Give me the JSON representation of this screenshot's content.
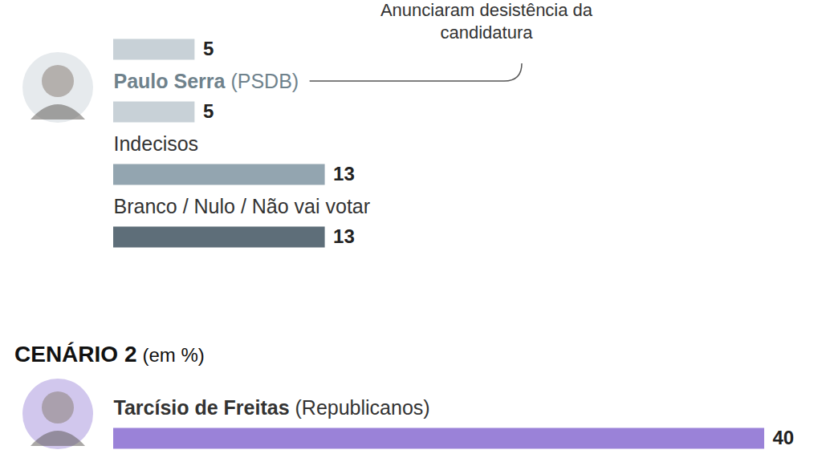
{
  "chart_data": [
    {
      "type": "bar",
      "orientation": "horizontal",
      "categories": [
        null,
        "Paulo Serra (PSDB)",
        "Indecisos",
        "Branco / Nulo / Não vai votar"
      ],
      "values": [
        5,
        5,
        13,
        13
      ],
      "colors": [
        "#c8d1d7",
        "#c8d1d7",
        "#93a5b0",
        "#5e6e79"
      ],
      "xlim": [
        0,
        40
      ],
      "data_labels": true,
      "tick_labels": false,
      "annotations": [
        {
          "text": "Anunciaram desistência da candidatura",
          "category": "Paulo Serra (PSDB)"
        }
      ]
    },
    {
      "type": "bar",
      "orientation": "horizontal",
      "title": "CENÁRIO 2",
      "subtitle": "(em %)",
      "categories": [
        "Tarcísio de Freitas (Republicanos)"
      ],
      "values": [
        40
      ],
      "colors": [
        "#9a82d8"
      ],
      "xlim": [
        0,
        40
      ],
      "data_labels": true,
      "tick_labels": false
    }
  ]
}
